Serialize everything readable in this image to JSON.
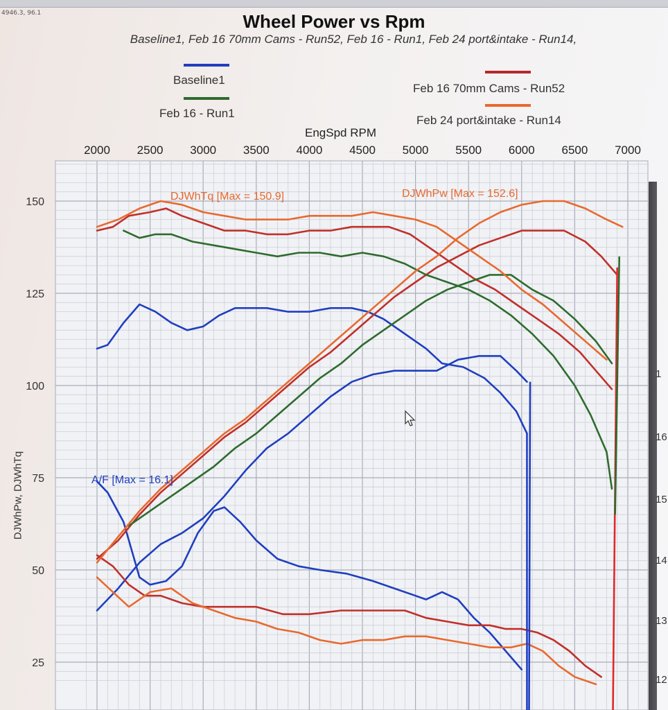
{
  "window": {
    "coordinate_readout": "4946.3, 96.1"
  },
  "chart_data": {
    "type": "line",
    "title": "Wheel Power  vs Rpm",
    "subtitle": "Baseline1, Feb 16 70mm Cams - Run52, Feb 16 - Run1, Feb 24 port&intake - Run14,",
    "xlabel": "EngSpd  RPM",
    "ylabel": "DJWhPw, DJWhTq",
    "xlim": [
      1900,
      7100
    ],
    "ylim": [
      22,
      162
    ],
    "x_ticks": [
      2000,
      2500,
      3000,
      3500,
      4000,
      4500,
      5000,
      5500,
      6000,
      6500,
      7000
    ],
    "y_ticks": [
      25,
      50,
      75,
      100,
      125,
      150
    ],
    "right_ticks": [
      "12",
      "13",
      "14",
      "15",
      "16",
      "1"
    ],
    "grid": true,
    "legend_position": "top",
    "legend": [
      {
        "name": "Baseline1",
        "color": "#1f3fbf"
      },
      {
        "name": "Feb 16 70mm Cams - Run52",
        "color": "#c0302a"
      },
      {
        "name": "Feb 16 - Run1",
        "color": "#2e6b2e"
      },
      {
        "name": "Feb 24 port&intake - Run14",
        "color": "#e8692e"
      }
    ],
    "annotations": {
      "torque": "DJWhTq [Max = 150.9]",
      "power": "DJWhPw [Max = 152.6]",
      "af": "A/F   [Max = 16.1]"
    },
    "series": [
      {
        "name": "Baseline1",
        "kind": "torque",
        "color": "#1f3fbf",
        "points": [
          [
            2000,
            110
          ],
          [
            2100,
            111
          ],
          [
            2250,
            117
          ],
          [
            2400,
            122
          ],
          [
            2550,
            120
          ],
          [
            2700,
            117
          ],
          [
            2850,
            115
          ],
          [
            3000,
            116
          ],
          [
            3150,
            119
          ],
          [
            3300,
            121
          ],
          [
            3450,
            121
          ],
          [
            3600,
            121
          ],
          [
            3800,
            120
          ],
          [
            4000,
            120
          ],
          [
            4200,
            121
          ],
          [
            4400,
            121
          ],
          [
            4550,
            120
          ],
          [
            4700,
            118
          ],
          [
            4900,
            114
          ],
          [
            5100,
            110
          ],
          [
            5250,
            106
          ],
          [
            5450,
            105
          ],
          [
            5650,
            102
          ],
          [
            5800,
            98
          ],
          [
            5950,
            93
          ],
          [
            6050,
            87
          ]
        ]
      },
      {
        "name": "Baseline1",
        "kind": "power",
        "color": "#1f3fbf",
        "points": [
          [
            2000,
            39
          ],
          [
            2200,
            45
          ],
          [
            2400,
            52
          ],
          [
            2600,
            57
          ],
          [
            2800,
            60
          ],
          [
            3000,
            64
          ],
          [
            3200,
            70
          ],
          [
            3400,
            77
          ],
          [
            3600,
            83
          ],
          [
            3800,
            87
          ],
          [
            4000,
            92
          ],
          [
            4200,
            97
          ],
          [
            4400,
            101
          ],
          [
            4600,
            103
          ],
          [
            4800,
            104
          ],
          [
            5000,
            104
          ],
          [
            5200,
            104
          ],
          [
            5400,
            107
          ],
          [
            5600,
            108
          ],
          [
            5800,
            108
          ],
          [
            5950,
            104
          ],
          [
            6050,
            101
          ]
        ]
      },
      {
        "name": "Baseline1",
        "kind": "af",
        "color": "#1f3fbf",
        "points": [
          [
            2000,
            74
          ],
          [
            2100,
            71
          ],
          [
            2250,
            63
          ],
          [
            2400,
            48
          ],
          [
            2500,
            46
          ],
          [
            2650,
            47
          ],
          [
            2800,
            51
          ],
          [
            2950,
            60
          ],
          [
            3100,
            66
          ],
          [
            3200,
            67
          ],
          [
            3350,
            63
          ],
          [
            3500,
            58
          ],
          [
            3700,
            53
          ],
          [
            3900,
            51
          ],
          [
            4100,
            50
          ],
          [
            4350,
            49
          ],
          [
            4600,
            47
          ],
          [
            4800,
            45
          ],
          [
            5000,
            43
          ],
          [
            5100,
            42
          ],
          [
            5250,
            44
          ],
          [
            5400,
            42
          ],
          [
            5550,
            37
          ],
          [
            5700,
            33
          ],
          [
            5850,
            28
          ],
          [
            6000,
            23
          ]
        ]
      },
      {
        "name": "Feb 16 70mm Cams - Run52",
        "kind": "torque",
        "color": "#c0302a",
        "points": [
          [
            2000,
            142
          ],
          [
            2150,
            143
          ],
          [
            2300,
            146
          ],
          [
            2500,
            147
          ],
          [
            2650,
            148
          ],
          [
            2800,
            146
          ],
          [
            3000,
            144
          ],
          [
            3200,
            142
          ],
          [
            3400,
            142
          ],
          [
            3600,
            141
          ],
          [
            3800,
            141
          ],
          [
            4000,
            142
          ],
          [
            4200,
            142
          ],
          [
            4400,
            143
          ],
          [
            4550,
            143
          ],
          [
            4750,
            143
          ],
          [
            4950,
            141
          ],
          [
            5150,
            137
          ],
          [
            5350,
            133
          ],
          [
            5550,
            129
          ],
          [
            5750,
            126
          ],
          [
            5950,
            122
          ],
          [
            6150,
            118
          ],
          [
            6350,
            114
          ],
          [
            6550,
            109
          ],
          [
            6700,
            104
          ],
          [
            6850,
            99
          ]
        ]
      },
      {
        "name": "Feb 16 70mm Cams - Run52",
        "kind": "power",
        "color": "#c0302a",
        "points": [
          [
            2000,
            53
          ],
          [
            2200,
            58
          ],
          [
            2400,
            65
          ],
          [
            2600,
            71
          ],
          [
            2800,
            76
          ],
          [
            3000,
            81
          ],
          [
            3200,
            86
          ],
          [
            3400,
            90
          ],
          [
            3600,
            95
          ],
          [
            3800,
            100
          ],
          [
            4000,
            105
          ],
          [
            4200,
            109
          ],
          [
            4400,
            114
          ],
          [
            4600,
            119
          ],
          [
            4800,
            124
          ],
          [
            5000,
            128
          ],
          [
            5200,
            132
          ],
          [
            5400,
            135
          ],
          [
            5600,
            138
          ],
          [
            5800,
            140
          ],
          [
            6000,
            142
          ],
          [
            6200,
            142
          ],
          [
            6400,
            142
          ],
          [
            6600,
            139
          ],
          [
            6750,
            135
          ],
          [
            6900,
            130
          ]
        ]
      },
      {
        "name": "Feb 16 70mm Cams - Run52",
        "kind": "af",
        "color": "#c0302a",
        "points": [
          [
            2000,
            54
          ],
          [
            2150,
            51
          ],
          [
            2300,
            46
          ],
          [
            2450,
            43
          ],
          [
            2600,
            43
          ],
          [
            2800,
            41
          ],
          [
            3000,
            40
          ],
          [
            3250,
            40
          ],
          [
            3500,
            40
          ],
          [
            3750,
            38
          ],
          [
            4000,
            38
          ],
          [
            4300,
            39
          ],
          [
            4600,
            39
          ],
          [
            4900,
            39
          ],
          [
            5100,
            37
          ],
          [
            5300,
            36
          ],
          [
            5500,
            35
          ],
          [
            5700,
            35
          ],
          [
            5850,
            34
          ],
          [
            6000,
            34
          ],
          [
            6150,
            33
          ],
          [
            6300,
            31
          ],
          [
            6450,
            28
          ],
          [
            6600,
            24
          ],
          [
            6750,
            21
          ]
        ]
      },
      {
        "name": "Feb 16 - Run1",
        "kind": "torque",
        "color": "#2e6b2e",
        "points": [
          [
            2250,
            142
          ],
          [
            2400,
            140
          ],
          [
            2550,
            141
          ],
          [
            2700,
            141
          ],
          [
            2900,
            139
          ],
          [
            3100,
            138
          ],
          [
            3300,
            137
          ],
          [
            3500,
            136
          ],
          [
            3700,
            135
          ],
          [
            3900,
            136
          ],
          [
            4100,
            136
          ],
          [
            4300,
            135
          ],
          [
            4500,
            136
          ],
          [
            4700,
            135
          ],
          [
            4900,
            133
          ],
          [
            5100,
            130
          ],
          [
            5300,
            128
          ],
          [
            5500,
            126
          ],
          [
            5700,
            123
          ],
          [
            5900,
            119
          ],
          [
            6100,
            114
          ],
          [
            6300,
            108
          ],
          [
            6500,
            100
          ],
          [
            6650,
            92
          ],
          [
            6800,
            82
          ],
          [
            6850,
            72
          ]
        ]
      },
      {
        "name": "Feb 16 - Run1",
        "kind": "power",
        "color": "#2e6b2e",
        "points": [
          [
            2300,
            62
          ],
          [
            2500,
            66
          ],
          [
            2700,
            70
          ],
          [
            2900,
            74
          ],
          [
            3100,
            78
          ],
          [
            3300,
            83
          ],
          [
            3500,
            87
          ],
          [
            3700,
            92
          ],
          [
            3900,
            97
          ],
          [
            4100,
            102
          ],
          [
            4300,
            106
          ],
          [
            4500,
            111
          ],
          [
            4700,
            115
          ],
          [
            4900,
            119
          ],
          [
            5100,
            123
          ],
          [
            5300,
            126
          ],
          [
            5500,
            128
          ],
          [
            5700,
            130
          ],
          [
            5900,
            130
          ],
          [
            6100,
            126
          ],
          [
            6300,
            123
          ],
          [
            6500,
            118
          ],
          [
            6700,
            112
          ],
          [
            6850,
            106
          ]
        ]
      },
      {
        "name": "Feb 24 port&intake - Run14",
        "kind": "torque",
        "color": "#e8692e",
        "points": [
          [
            2000,
            143
          ],
          [
            2200,
            145
          ],
          [
            2400,
            148
          ],
          [
            2600,
            150
          ],
          [
            2800,
            149
          ],
          [
            3000,
            147
          ],
          [
            3200,
            146
          ],
          [
            3400,
            145
          ],
          [
            3600,
            145
          ],
          [
            3800,
            145
          ],
          [
            4000,
            146
          ],
          [
            4200,
            146
          ],
          [
            4400,
            146
          ],
          [
            4600,
            147
          ],
          [
            4800,
            146
          ],
          [
            5000,
            145
          ],
          [
            5200,
            143
          ],
          [
            5400,
            139
          ],
          [
            5600,
            135
          ],
          [
            5800,
            131
          ],
          [
            6000,
            126
          ],
          [
            6200,
            122
          ],
          [
            6400,
            117
          ],
          [
            6600,
            112
          ],
          [
            6800,
            107
          ]
        ]
      },
      {
        "name": "Feb 24 port&intake - Run14",
        "kind": "power",
        "color": "#e8692e",
        "points": [
          [
            2000,
            52
          ],
          [
            2200,
            59
          ],
          [
            2400,
            66
          ],
          [
            2600,
            72
          ],
          [
            2800,
            77
          ],
          [
            3000,
            82
          ],
          [
            3200,
            87
          ],
          [
            3400,
            91
          ],
          [
            3600,
            96
          ],
          [
            3800,
            101
          ],
          [
            4000,
            106
          ],
          [
            4200,
            111
          ],
          [
            4400,
            116
          ],
          [
            4600,
            121
          ],
          [
            4800,
            126
          ],
          [
            5000,
            131
          ],
          [
            5200,
            135
          ],
          [
            5400,
            140
          ],
          [
            5600,
            144
          ],
          [
            5800,
            147
          ],
          [
            6000,
            149
          ],
          [
            6200,
            150
          ],
          [
            6400,
            150
          ],
          [
            6600,
            148
          ],
          [
            6800,
            145
          ],
          [
            6950,
            143
          ]
        ]
      },
      {
        "name": "Feb 24 port&intake - Run14",
        "kind": "af",
        "color": "#e8692e",
        "points": [
          [
            2000,
            48
          ],
          [
            2150,
            44
          ],
          [
            2300,
            40
          ],
          [
            2500,
            44
          ],
          [
            2700,
            45
          ],
          [
            2900,
            41
          ],
          [
            3100,
            39
          ],
          [
            3300,
            37
          ],
          [
            3500,
            36
          ],
          [
            3700,
            34
          ],
          [
            3900,
            33
          ],
          [
            4100,
            31
          ],
          [
            4300,
            30
          ],
          [
            4500,
            31
          ],
          [
            4700,
            31
          ],
          [
            4900,
            32
          ],
          [
            5100,
            32
          ],
          [
            5300,
            31
          ],
          [
            5500,
            30
          ],
          [
            5700,
            29
          ],
          [
            5900,
            29
          ],
          [
            6050,
            30
          ],
          [
            6200,
            28
          ],
          [
            6350,
            24
          ],
          [
            6500,
            21
          ],
          [
            6700,
            19
          ]
        ]
      }
    ]
  }
}
